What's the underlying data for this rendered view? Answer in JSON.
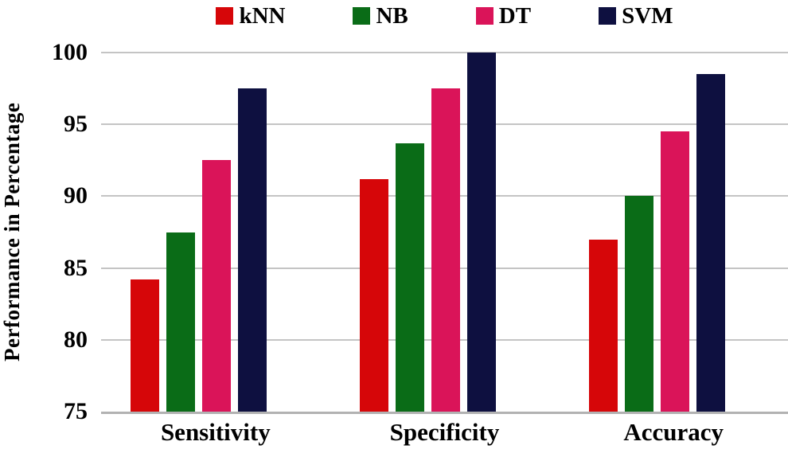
{
  "chart_data": {
    "type": "bar",
    "title": "",
    "xlabel": "",
    "ylabel": "Performance in Percentage",
    "categories": [
      "Sensitivity",
      "Specificity",
      "Accuracy"
    ],
    "series": [
      {
        "name": "kNN",
        "color": "#d60609",
        "values": [
          84.2,
          91.2,
          87.0
        ]
      },
      {
        "name": "NB",
        "color": "#0a6c17",
        "values": [
          87.5,
          93.7,
          90.0
        ]
      },
      {
        "name": "DT",
        "color": "#da1459",
        "values": [
          92.5,
          97.5,
          94.5
        ]
      },
      {
        "name": "SVM",
        "color": "#0e1040",
        "values": [
          97.5,
          100.0,
          98.5
        ]
      }
    ],
    "ylim": [
      75,
      100
    ],
    "yticks": [
      75,
      80,
      85,
      90,
      95,
      100
    ],
    "grid": "horizontal-only",
    "legend_position": "top-center",
    "gridline_color": "#c4c4c4",
    "axis_line_color": "#b2b2b2",
    "text_color": "#000000",
    "background_color": "#ffffff"
  }
}
